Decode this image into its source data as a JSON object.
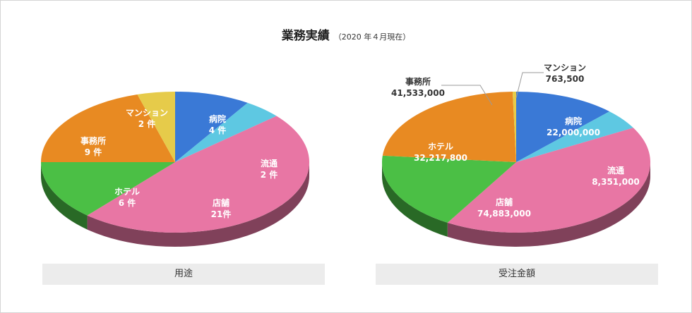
{
  "title": "業務実績",
  "subtitle": "（2020 年４月現在）",
  "chart_data": [
    {
      "type": "pie",
      "caption": "用途",
      "slices": [
        {
          "label": "病院",
          "value_text": "4 件",
          "value": 4,
          "color": "#3a79d6"
        },
        {
          "label": "流通",
          "value_text": "2 件",
          "value": 2,
          "color": "#5ec8e2"
        },
        {
          "label": "店舗",
          "value_text": "21件",
          "value": 21,
          "color": "#e876a4"
        },
        {
          "label": "ホテル",
          "value_text": "6 件",
          "value": 6,
          "color": "#4bbf45"
        },
        {
          "label": "事務所",
          "value_text": "9 件",
          "value": 9,
          "color": "#e88a22"
        },
        {
          "label": "マンション",
          "value_text": "2 件",
          "value": 2,
          "color": "#e6cb4a"
        }
      ]
    },
    {
      "type": "pie",
      "caption": "受注金額",
      "slices": [
        {
          "label": "病院",
          "value_text": "22,000,000",
          "value": 22000000,
          "color": "#3a79d6"
        },
        {
          "label": "流通",
          "value_text": "8,351,000",
          "value": 8351000,
          "color": "#5ec8e2"
        },
        {
          "label": "店舗",
          "value_text": "74,883,000",
          "value": 74883000,
          "color": "#e876a4"
        },
        {
          "label": "ホテル",
          "value_text": "32,217,800",
          "value": 32217800,
          "color": "#4bbf45"
        },
        {
          "label": "事務所",
          "value_text": "41,533,000",
          "value": 41533000,
          "color": "#e88a22"
        },
        {
          "label": "マンション",
          "value_text": "763,500",
          "value": 763500,
          "color": "#e6cb4a"
        }
      ]
    }
  ]
}
